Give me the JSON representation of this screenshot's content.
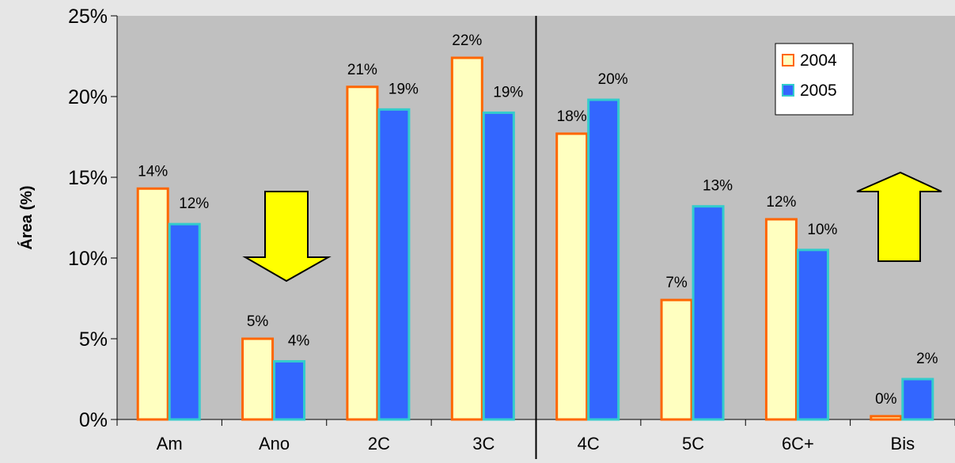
{
  "chart_data": {
    "type": "bar",
    "title": "",
    "xlabel": "",
    "ylabel": "Área (%)",
    "ylim": [
      0,
      25
    ],
    "y_ticks": [
      "0%",
      "5%",
      "10%",
      "15%",
      "20%",
      "25%"
    ],
    "categories": [
      "Am",
      "Ano",
      "2C",
      "3C",
      "4C",
      "5C",
      "6C+",
      "Bis"
    ],
    "series": [
      {
        "name": "2004",
        "values": [
          14.3,
          5.0,
          20.6,
          22.4,
          17.7,
          7.4,
          12.4,
          0.2
        ],
        "labels": [
          "14%",
          "5%",
          "21%",
          "22%",
          "18%",
          "7%",
          "12%",
          "0%"
        ]
      },
      {
        "name": "2005",
        "values": [
          12.1,
          3.6,
          19.2,
          19.0,
          19.8,
          13.2,
          10.5,
          2.5
        ],
        "labels": [
          "12%",
          "4%",
          "19%",
          "19%",
          "20%",
          "13%",
          "10%",
          "2%"
        ]
      }
    ],
    "legend": {
      "placement": "top-right"
    },
    "grid": false,
    "divider_after_category": "3C",
    "annotations": [
      {
        "type": "arrow",
        "direction": "down",
        "near_category": "Ano",
        "fill": "#ffff00"
      },
      {
        "type": "arrow",
        "direction": "up",
        "near_category": "Bis",
        "fill": "#ffff00"
      }
    ],
    "colors": {
      "plot_background": "#c0c0c0",
      "page_background": "#e6e6e6",
      "series_2004_fill": "#ffffc0",
      "series_2004_stroke": "#ff6600",
      "series_2005_fill": "#3366ff",
      "series_2005_stroke": "#33cccc"
    }
  }
}
